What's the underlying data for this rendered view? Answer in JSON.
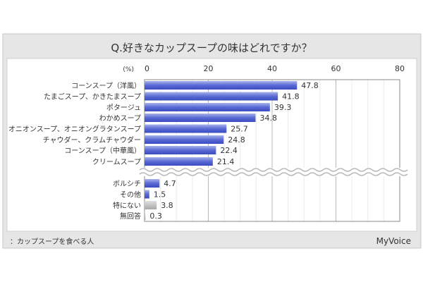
{
  "chart_data": {
    "type": "bar",
    "orientation": "horizontal",
    "title": "Q.好きなカップスープの味はどれですか？",
    "unit_label": "(%)",
    "xlim": [
      0,
      80
    ],
    "xticks": [
      0,
      20,
      40,
      60,
      80
    ],
    "grid": true,
    "axis_break": true,
    "categories": [
      "コーンスープ（洋風）",
      "たまごスープ、かきたまスープ",
      "ポタージュ",
      "わかめスープ",
      "オニオンスープ、オニオングラタンスープ",
      "チャウダー、クラムチャウダー",
      "コーンスープ（中華風）",
      "クリームスープ",
      "ボルシチ",
      "その他",
      "特にない",
      "無回答"
    ],
    "values": [
      47.8,
      41.8,
      39.3,
      34.8,
      25.7,
      24.8,
      22.4,
      21.4,
      4.7,
      1.5,
      3.8,
      0.3
    ],
    "value_labels": [
      "47.8",
      "41.8",
      "39.3",
      "34.8",
      "25.7",
      "24.8",
      "22.4",
      "21.4",
      "4.7",
      "1.5",
      "3.8",
      "0.3"
    ],
    "bar_colors": [
      "blue",
      "blue",
      "blue",
      "blue",
      "blue",
      "blue",
      "blue",
      "blue",
      "blue",
      "blue",
      "gray",
      "gray"
    ],
    "footnote": "：カップスープを食べる人",
    "logo": "MyVoice"
  },
  "colors": {
    "blue_dark": "#3b4cc0",
    "blue_light": "#9aa6e6",
    "gray": "#bdbdbd",
    "panel": "#e6e6e6"
  }
}
